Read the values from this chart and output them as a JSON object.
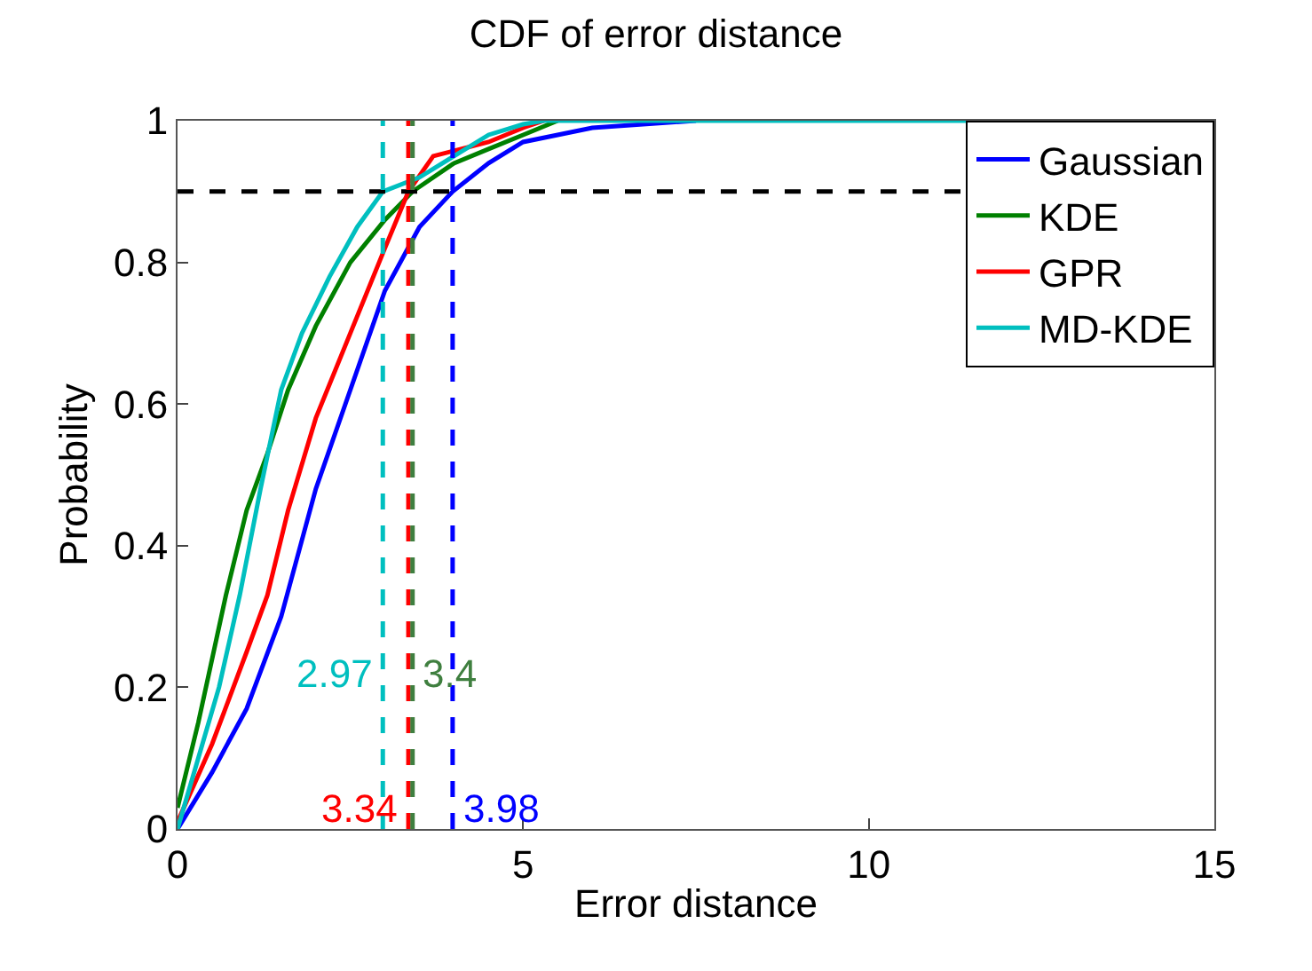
{
  "chart_data": {
    "type": "line",
    "title": "CDF of error distance",
    "xlabel": "Error distance",
    "ylabel": "Probability",
    "xlim": [
      0,
      15
    ],
    "xticks": [
      0,
      5,
      10,
      15
    ],
    "ylim": [
      0,
      1
    ],
    "yticks": [
      0,
      0.2,
      0.4,
      0.6,
      0.8,
      1
    ],
    "legend": "top right",
    "line_style": "solid",
    "marker": "none",
    "series": [
      {
        "name": "Gaussian",
        "color": "#0000ff",
        "x": [
          0,
          0.5,
          1.0,
          1.5,
          2.0,
          2.5,
          3.0,
          3.5,
          3.98,
          4.5,
          5.0,
          6.0,
          7.5
        ],
        "values": [
          0,
          0.08,
          0.17,
          0.3,
          0.48,
          0.62,
          0.76,
          0.85,
          0.9,
          0.94,
          0.97,
          0.99,
          1.0
        ]
      },
      {
        "name": "KDE",
        "color": "#008000",
        "x": [
          0,
          0.3,
          0.7,
          1.0,
          1.3,
          1.6,
          2.0,
          2.5,
          3.0,
          3.4,
          4.0,
          4.5,
          5.0,
          5.5
        ],
        "values": [
          0.03,
          0.15,
          0.33,
          0.45,
          0.53,
          0.62,
          0.71,
          0.8,
          0.86,
          0.9,
          0.94,
          0.96,
          0.98,
          1.0
        ]
      },
      {
        "name": "GPR",
        "color": "#ff0000",
        "x": [
          0,
          0.5,
          1.0,
          1.3,
          1.6,
          2.0,
          2.5,
          3.0,
          3.34,
          3.7,
          4.5,
          5.0,
          5.3
        ],
        "values": [
          0.01,
          0.12,
          0.25,
          0.33,
          0.45,
          0.58,
          0.7,
          0.82,
          0.9,
          0.95,
          0.97,
          0.99,
          1.0
        ]
      },
      {
        "name": "MD-KDE",
        "color": "#00bfbf",
        "x": [
          0,
          0.3,
          0.6,
          0.9,
          1.2,
          1.5,
          1.8,
          2.2,
          2.6,
          2.97,
          3.5,
          4.0,
          4.5,
          5.0,
          5.3,
          15
        ],
        "values": [
          0,
          0.1,
          0.2,
          0.33,
          0.48,
          0.62,
          0.7,
          0.78,
          0.85,
          0.9,
          0.92,
          0.95,
          0.98,
          0.995,
          1.0,
          1.0
        ]
      }
    ],
    "ref_lines": [
      {
        "axis": "y",
        "value": 0.9,
        "color": "#000000",
        "line_style": "dashed"
      },
      {
        "axis": "x",
        "value": 2.97,
        "label": "2.97",
        "color": "#00bfbf",
        "line_style": "dashed"
      },
      {
        "axis": "x",
        "value": 3.34,
        "label": "3.34",
        "color": "#ff0000",
        "line_style": "dashed"
      },
      {
        "axis": "x",
        "value": 3.4,
        "label": "3.4",
        "color": "#3f7f3f",
        "line_style": "dashed"
      },
      {
        "axis": "x",
        "value": 3.98,
        "label": "3.98",
        "color": "#0000ff",
        "line_style": "dashed"
      }
    ]
  }
}
